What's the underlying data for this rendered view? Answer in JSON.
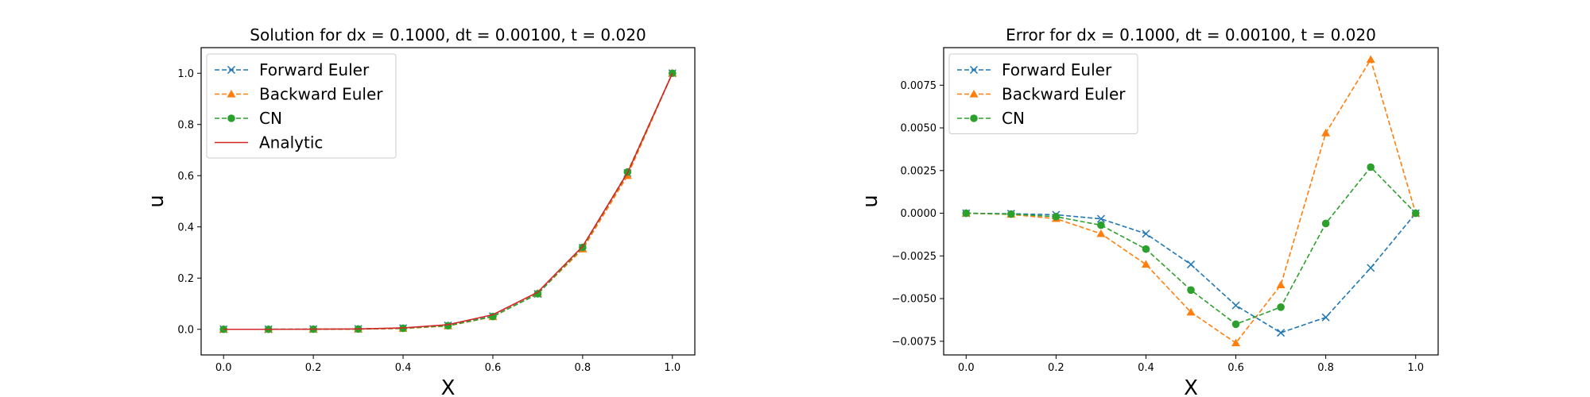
{
  "chart_data": [
    {
      "type": "line",
      "title": "Solution for dx = 0.1000, dt = 0.00100, t = 0.020",
      "xlabel": "X",
      "ylabel": "u",
      "xlim": [
        -0.05,
        1.05
      ],
      "ylim": [
        -0.1,
        1.1
      ],
      "xticks": [
        "0.0",
        "0.2",
        "0.4",
        "0.6",
        "0.8",
        "1.0"
      ],
      "xtick_values": [
        0.0,
        0.2,
        0.4,
        0.6,
        0.8,
        1.0
      ],
      "yticks": [
        "0.0",
        "0.2",
        "0.4",
        "0.6",
        "0.8",
        "1.0"
      ],
      "ytick_values": [
        0.0,
        0.2,
        0.4,
        0.6,
        0.8,
        1.0
      ],
      "legend_position": "top-left",
      "grid": false,
      "x": [
        0.0,
        0.1,
        0.2,
        0.3,
        0.4,
        0.5,
        0.6,
        0.7,
        0.8,
        0.9,
        1.0
      ],
      "series": [
        {
          "name": "Forward Euler",
          "color": "#1f77b4",
          "linestyle": "dashed",
          "marker": "x",
          "values": [
            0.0,
            0.0,
            0.0005,
            0.0015,
            0.0045,
            0.015,
            0.051,
            0.138,
            0.318,
            0.61,
            1.0
          ]
        },
        {
          "name": "Backward Euler",
          "color": "#ff7f0e",
          "linestyle": "dashed",
          "marker": "triangle",
          "values": [
            0.0,
            0.0,
            0.0003,
            0.0008,
            0.003,
            0.013,
            0.049,
            0.14,
            0.313,
            0.6,
            1.0
          ]
        },
        {
          "name": "CN",
          "color": "#2ca02c",
          "linestyle": "dashed",
          "marker": "circle",
          "values": [
            0.0,
            0.0,
            0.0004,
            0.0012,
            0.004,
            0.014,
            0.05,
            0.139,
            0.32,
            0.614,
            1.0
          ]
        },
        {
          "name": "Analytic",
          "color": "#d62728",
          "linestyle": "solid",
          "marker": "none",
          "values": [
            0.0,
            0.0,
            0.0005,
            0.0015,
            0.0055,
            0.018,
            0.057,
            0.145,
            0.324,
            0.611,
            1.0
          ]
        }
      ]
    },
    {
      "type": "line",
      "title": "Error for dx = 0.1000, dt = 0.00100, t = 0.020",
      "xlabel": "X",
      "ylabel": "u",
      "xlim": [
        -0.05,
        1.05
      ],
      "ylim": [
        -0.0083,
        0.0097
      ],
      "xticks": [
        "0.0",
        "0.2",
        "0.4",
        "0.6",
        "0.8",
        "1.0"
      ],
      "xtick_values": [
        0.0,
        0.2,
        0.4,
        0.6,
        0.8,
        1.0
      ],
      "yticks": [
        "−0.0075",
        "−0.0050",
        "−0.0025",
        "0.0000",
        "0.0025",
        "0.0050",
        "0.0075"
      ],
      "ytick_values": [
        -0.0075,
        -0.005,
        -0.0025,
        0.0,
        0.0025,
        0.005,
        0.0075
      ],
      "legend_position": "top-left",
      "grid": false,
      "x": [
        0.0,
        0.1,
        0.2,
        0.3,
        0.4,
        0.5,
        0.6,
        0.7,
        0.8,
        0.9,
        1.0
      ],
      "series": [
        {
          "name": "Forward Euler",
          "color": "#1f77b4",
          "linestyle": "dashed",
          "marker": "x",
          "values": [
            0.0,
            -3e-05,
            -9e-05,
            -0.00033,
            -0.0012,
            -0.003,
            -0.0054,
            -0.007,
            -0.0061,
            -0.0032,
            0.0
          ]
        },
        {
          "name": "Backward Euler",
          "color": "#ff7f0e",
          "linestyle": "dashed",
          "marker": "triangle",
          "values": [
            0.0,
            -7e-05,
            -0.00032,
            -0.0012,
            -0.003,
            -0.0058,
            -0.0076,
            -0.0042,
            0.0047,
            0.009,
            0.0
          ]
        },
        {
          "name": "CN",
          "color": "#2ca02c",
          "linestyle": "dashed",
          "marker": "circle",
          "values": [
            0.0,
            -5e-05,
            -0.0002,
            -0.0007,
            -0.0021,
            -0.0045,
            -0.0065,
            -0.0055,
            -0.0006,
            0.0027,
            0.0
          ]
        }
      ]
    }
  ]
}
